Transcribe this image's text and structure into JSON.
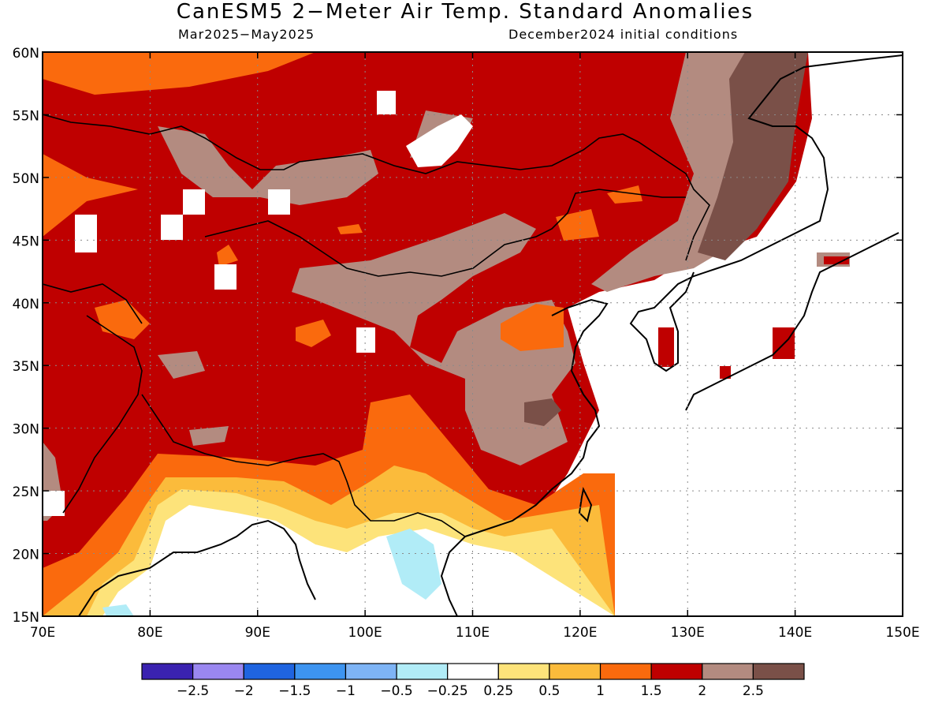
{
  "title": "CanESM5 2−Meter Air Temp. Standard Anomalies",
  "subtitle_left": "Mar2025−May2025",
  "subtitle_right": "December2024 initial conditions",
  "map": {
    "lat_ticks": [
      "60N",
      "55N",
      "50N",
      "45N",
      "40N",
      "35N",
      "30N",
      "25N",
      "20N",
      "15N"
    ],
    "lon_ticks": [
      "70E",
      "80E",
      "90E",
      "100E",
      "110E",
      "120E",
      "130E",
      "140E",
      "150E"
    ],
    "colors": {
      "c_m3": "#3a22b0",
      "c_m25": "#9a87f0",
      "c_m2": "#1f64e0",
      "c_m15": "#3d94f0",
      "c_m1": "#7eb4f5",
      "c_m05": "#b1ecf7",
      "c_0": "#ffffff",
      "c_025": "#fde37a",
      "c_05": "#fbbb3b",
      "c_1": "#fa6a0d",
      "c_15": "#bf0000",
      "c_2": "#b38b80",
      "c_25": "#7a5048"
    }
  },
  "colorbar": {
    "colors": [
      "#3a22b0",
      "#9a87f0",
      "#1f64e0",
      "#3d94f0",
      "#7eb4f5",
      "#b1ecf7",
      "#ffffff",
      "#fde37a",
      "#fbbb3b",
      "#fa6a0d",
      "#bf0000",
      "#b38b80",
      "#7a5048"
    ],
    "labels": [
      "−2.5",
      "−2",
      "−1.5",
      "−1",
      "−0.5",
      "−0.25",
      "0.25",
      "0.5",
      "1",
      "1.5",
      "2",
      "2.5"
    ]
  }
}
